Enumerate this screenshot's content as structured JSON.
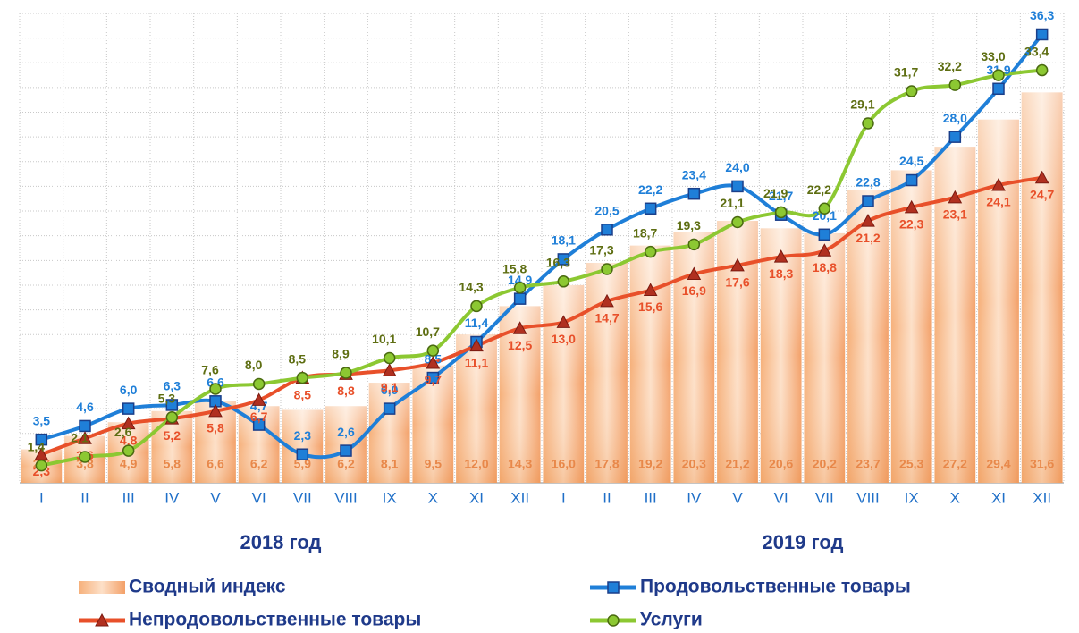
{
  "chart_data": {
    "type": "combo",
    "categories": [
      "I",
      "II",
      "III",
      "IV",
      "V",
      "VI",
      "VII",
      "VIII",
      "IX",
      "X",
      "XI",
      "XII",
      "I",
      "II",
      "III",
      "IV",
      "V",
      "VI",
      "VII",
      "VIII",
      "IX",
      "X",
      "XI",
      "XII"
    ],
    "group_labels": [
      "2018 год",
      "2019 год"
    ],
    "ylim": [
      0,
      38
    ],
    "yticks": [
      0,
      2,
      4,
      6,
      8,
      10,
      12,
      14,
      16,
      18,
      20,
      22,
      24,
      26,
      28,
      30,
      32,
      34,
      36,
      38
    ],
    "grid": true,
    "series": [
      {
        "name": "Сводный индекс",
        "type": "bar",
        "color": "#f4a060",
        "values": [
          2.7,
          3.8,
          4.9,
          5.8,
          6.6,
          6.2,
          5.9,
          6.2,
          8.1,
          9.5,
          12.0,
          14.3,
          16.0,
          17.8,
          19.2,
          20.3,
          21.2,
          20.6,
          20.2,
          23.7,
          25.3,
          27.2,
          29.4,
          31.6
        ],
        "value_labels": [
          "2,7",
          "3,8",
          "4,9",
          "5,8",
          "6,6",
          "6,2",
          "5,9",
          "6,2",
          "8,1",
          "9,5",
          "12,0",
          "14,3",
          "16,0",
          "17,8",
          "19,2",
          "20,3",
          "21,2",
          "20,6",
          "20,2",
          "23,7",
          "25,3",
          "27,2",
          "29,4",
          "31,6"
        ]
      },
      {
        "name": "Продовольственные товары",
        "type": "line",
        "marker": "square",
        "color": "#1f7fd8",
        "values": [
          3.5,
          4.6,
          6.0,
          6.3,
          6.6,
          4.7,
          2.3,
          2.6,
          6.0,
          8.5,
          11.4,
          14.9,
          18.1,
          20.5,
          22.2,
          23.4,
          24.0,
          21.7,
          20.1,
          22.8,
          24.5,
          28.0,
          31.9,
          36.3
        ],
        "value_labels": [
          "3,5",
          "4,6",
          "6,0",
          "6,3",
          "6,6",
          "4,7",
          "2,3",
          "2,6",
          "6,0",
          "8,5",
          "11,4",
          "14,9",
          "18,1",
          "20,5",
          "22,2",
          "23,4",
          "24,0",
          "21,7",
          "20,1",
          "22,8",
          "24,5",
          "28,0",
          "31,9",
          "36,3"
        ]
      },
      {
        "name": "Непродовольственные товары",
        "type": "line",
        "marker": "triangle",
        "color": "#e8502a",
        "values": [
          2.3,
          3.6,
          4.8,
          5.2,
          5.8,
          6.7,
          8.5,
          8.8,
          9.1,
          9.7,
          11.1,
          12.5,
          13.0,
          14.7,
          15.6,
          16.9,
          17.6,
          18.3,
          18.8,
          21.2,
          22.3,
          23.1,
          24.1,
          24.7
        ],
        "value_labels": [
          "2,3",
          "3,6",
          "4,8",
          "5,2",
          "5,8",
          "6,7",
          "8,5",
          "8,8",
          "9,1",
          "9,7",
          "11,1",
          "12,5",
          "13,0",
          "14,7",
          "15,6",
          "16,9",
          "17,6",
          "18,3",
          "18,8",
          "21,2",
          "22,3",
          "23,1",
          "24,1",
          "24,7"
        ]
      },
      {
        "name": "Услуги",
        "type": "line",
        "marker": "circle",
        "color": "#8cc832",
        "values": [
          1.4,
          2.1,
          2.6,
          5.3,
          7.6,
          8.0,
          8.5,
          8.9,
          10.1,
          10.7,
          14.3,
          15.8,
          16.3,
          17.3,
          18.7,
          19.3,
          21.1,
          21.9,
          22.2,
          29.1,
          31.7,
          32.2,
          33.0,
          33.4
        ],
        "value_labels": [
          "1,4",
          "2,1",
          "2,6",
          "5,3",
          "7,6",
          "8,0",
          "8,5",
          "8,9",
          "10,1",
          "10,7",
          "14,3",
          "15,8",
          "16,3",
          "17,3",
          "18,7",
          "19,3",
          "21,1",
          "21,9",
          "22,2",
          "29,1",
          "31,7",
          "32,2",
          "33,0",
          "33,4"
        ]
      }
    ]
  }
}
